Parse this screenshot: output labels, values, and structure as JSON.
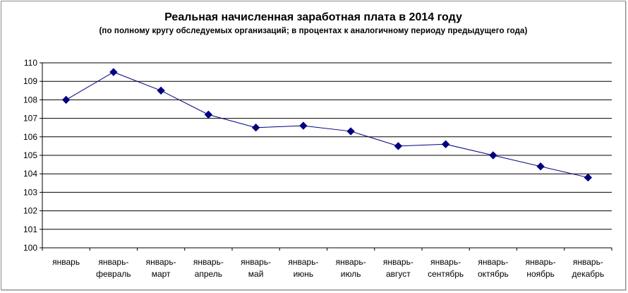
{
  "chart_data": {
    "type": "line",
    "title": "Реальная начисленная заработная плата в 2014 году",
    "subtitle": "(по полному кругу обследуемых организаций;  в процентах к аналогичному периоду предыдущего года)",
    "categories": [
      [
        "январь"
      ],
      [
        "январь-",
        "февраль"
      ],
      [
        "январь-",
        "март"
      ],
      [
        "январь-",
        "апрель"
      ],
      [
        "январь-",
        "май"
      ],
      [
        "январь-",
        "июнь"
      ],
      [
        "январь-",
        "июль"
      ],
      [
        "январь-",
        "август"
      ],
      [
        "январь-",
        "сентябрь"
      ],
      [
        "январь-",
        "октябрь"
      ],
      [
        "январь-",
        "ноябрь"
      ],
      [
        "январь-",
        "декабрь"
      ]
    ],
    "series": [
      {
        "values": [
          108.0,
          109.5,
          108.5,
          107.2,
          106.5,
          106.6,
          106.3,
          105.5,
          105.6,
          105.0,
          104.4,
          103.8
        ]
      }
    ],
    "ylim": [
      100,
      110
    ],
    "yticks": [
      "100",
      "101",
      "102",
      "103",
      "104",
      "105",
      "106",
      "107",
      "108",
      "109",
      "110"
    ],
    "grid": true,
    "legend": "none",
    "colors": {
      "line": "#000080",
      "grid": "#000000"
    }
  }
}
